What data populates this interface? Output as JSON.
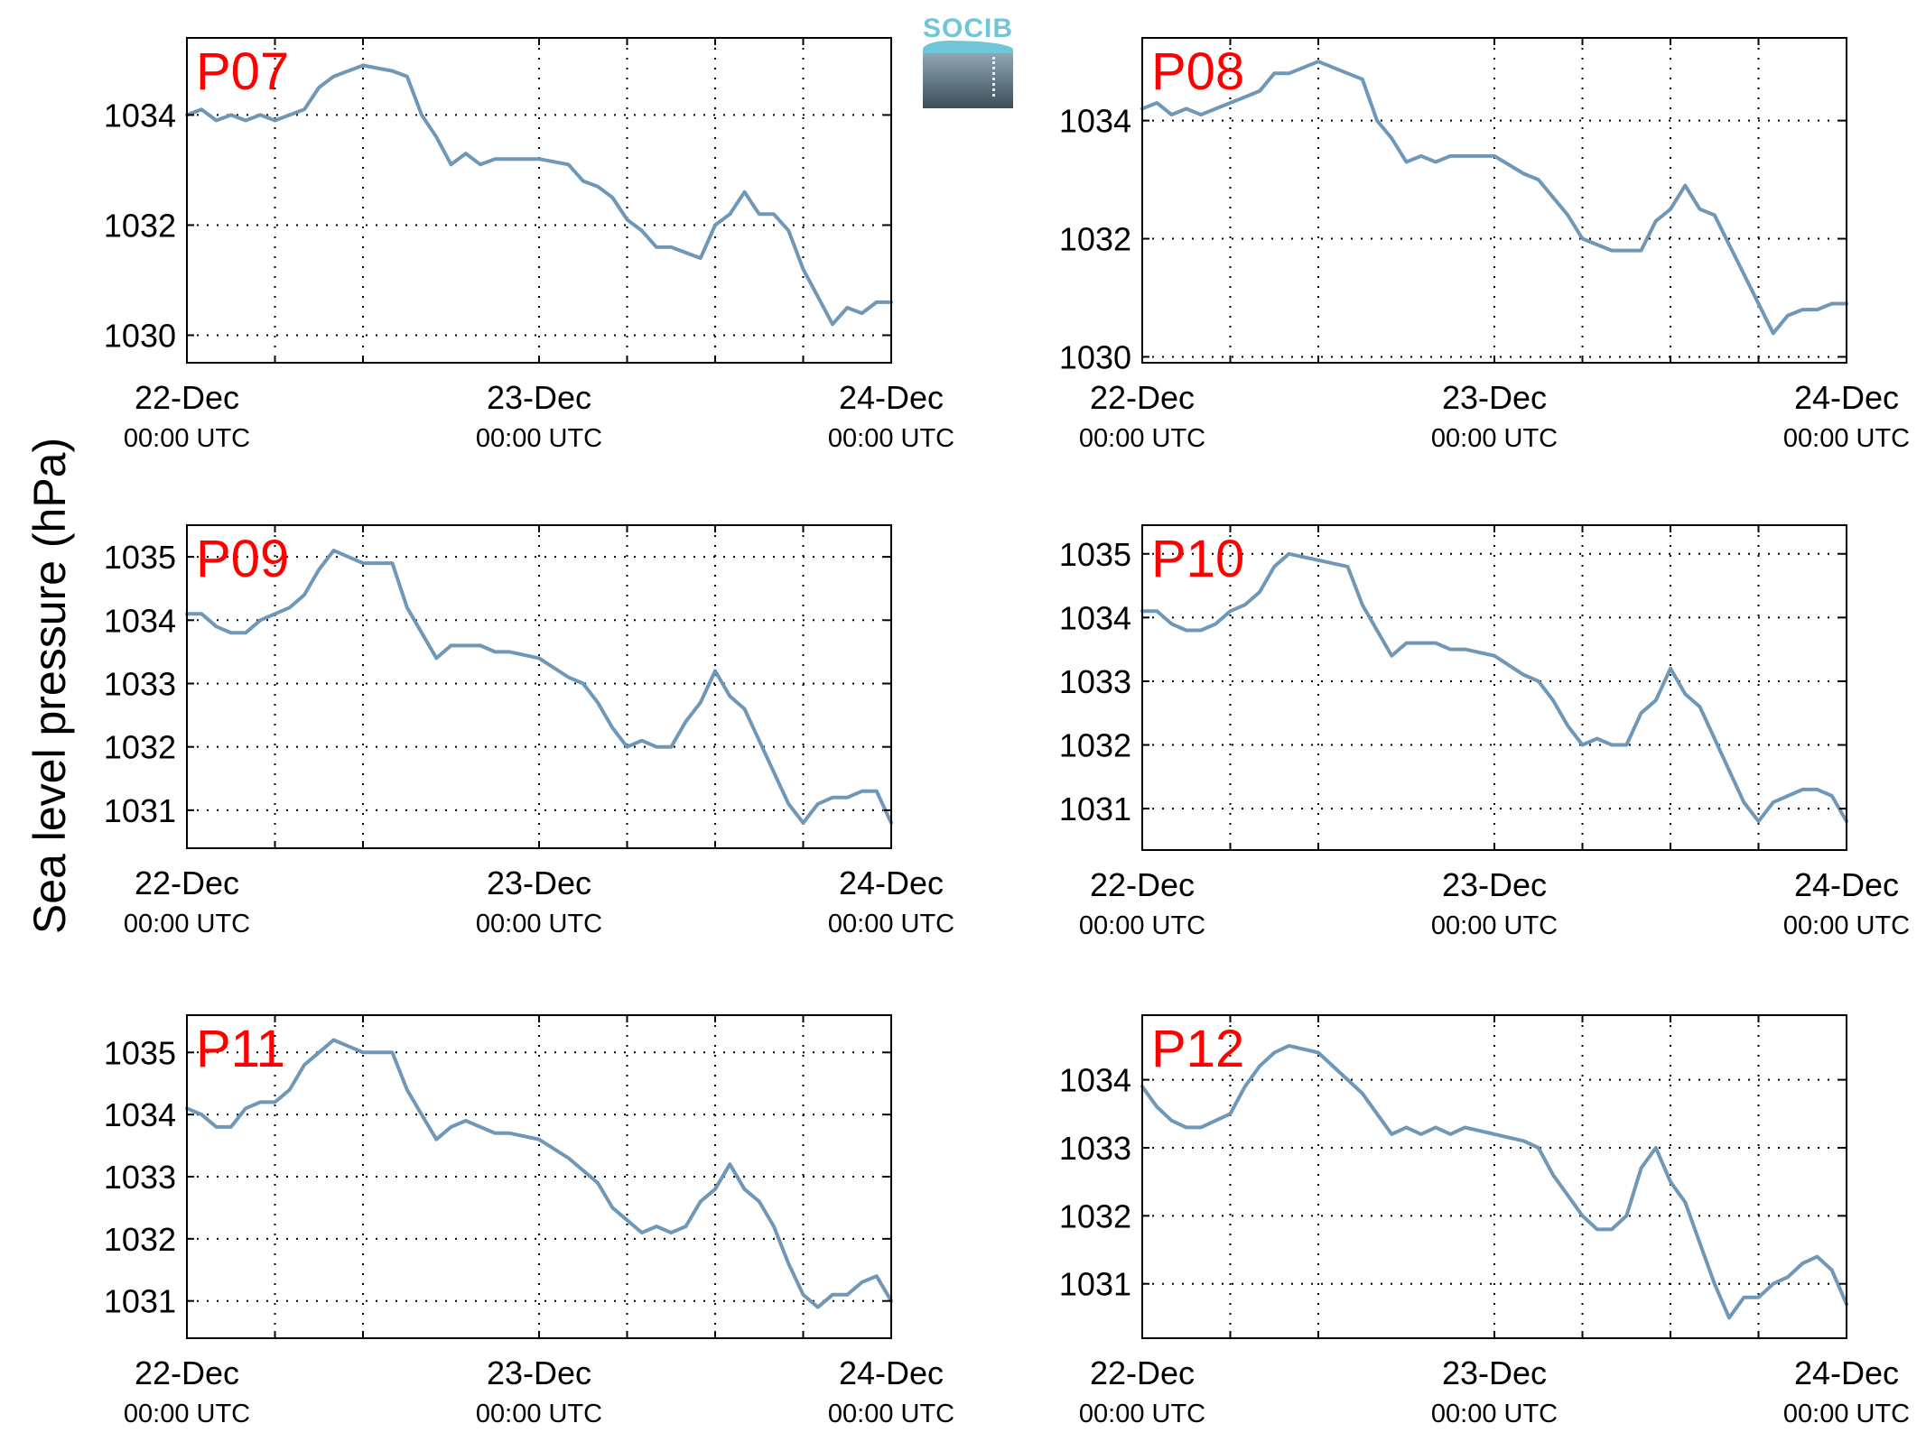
{
  "figure": {
    "ylabel": "Sea level pressure (hPa)",
    "logo_text": "SOCIB",
    "colors": {
      "line": "#6f97b8",
      "panel_label": "#ff0000",
      "axes": "#000000",
      "grid": "#000000"
    }
  },
  "chart_data": [
    {
      "type": "line",
      "panel_label": "P07",
      "x_tick_labels": [
        [
          "22-Dec",
          "00:00 UTC"
        ],
        [
          "23-Dec",
          "00:00 UTC"
        ],
        [
          "24-Dec",
          "00:00 UTC"
        ]
      ],
      "xlim": [
        "22-Dec 00:00",
        "24-Dec 00:00"
      ],
      "x_unit": "hours",
      "ylim": [
        1029.5,
        1035.4
      ],
      "yticks": [
        1030,
        1032,
        1034
      ],
      "grid": true,
      "x": [
        0,
        1,
        2,
        3,
        4,
        5,
        6,
        7,
        8,
        9,
        10,
        12,
        14,
        15,
        16,
        17,
        18,
        19,
        20,
        21,
        22,
        24,
        26,
        27,
        28,
        29,
        30,
        31,
        32,
        33,
        34,
        35,
        36,
        37,
        38,
        39,
        40,
        41,
        42,
        43,
        44,
        45,
        46,
        47,
        48
      ],
      "y": [
        1034.0,
        1034.1,
        1033.9,
        1034.0,
        1033.9,
        1034.0,
        1033.9,
        1034.0,
        1034.1,
        1034.5,
        1034.7,
        1034.9,
        1034.8,
        1034.7,
        1034.0,
        1033.6,
        1033.1,
        1033.3,
        1033.1,
        1033.2,
        1033.2,
        1033.2,
        1033.1,
        1032.8,
        1032.7,
        1032.5,
        1032.1,
        1031.9,
        1031.6,
        1031.6,
        1031.5,
        1031.4,
        1032.0,
        1032.2,
        1032.6,
        1032.2,
        1032.2,
        1031.9,
        1031.2,
        1030.7,
        1030.2,
        1030.5,
        1030.4,
        1030.6,
        1030.6
      ]
    },
    {
      "type": "line",
      "panel_label": "P08",
      "x_tick_labels": [
        [
          "22-Dec",
          "00:00 UTC"
        ],
        [
          "23-Dec",
          "00:00 UTC"
        ],
        [
          "24-Dec",
          "00:00 UTC"
        ]
      ],
      "xlim": [
        "22-Dec 00:00",
        "24-Dec 00:00"
      ],
      "x_unit": "hours",
      "ylim": [
        1029.9,
        1035.4
      ],
      "yticks": [
        1030,
        1032,
        1034
      ],
      "grid": true,
      "x": [
        0,
        1,
        2,
        3,
        4,
        5,
        6,
        7,
        8,
        9,
        10,
        12,
        14,
        15,
        16,
        17,
        18,
        19,
        20,
        21,
        22,
        24,
        26,
        27,
        28,
        29,
        30,
        31,
        32,
        33,
        34,
        35,
        36,
        37,
        38,
        39,
        40,
        41,
        42,
        43,
        44,
        45,
        46,
        47,
        48
      ],
      "y": [
        1034.2,
        1034.3,
        1034.1,
        1034.2,
        1034.1,
        1034.2,
        1034.3,
        1034.4,
        1034.5,
        1034.8,
        1034.8,
        1035.0,
        1034.8,
        1034.7,
        1034.0,
        1033.7,
        1033.3,
        1033.4,
        1033.3,
        1033.4,
        1033.4,
        1033.4,
        1033.1,
        1033.0,
        1032.7,
        1032.4,
        1032.0,
        1031.9,
        1031.8,
        1031.8,
        1031.8,
        1032.3,
        1032.5,
        1032.9,
        1032.5,
        1032.4,
        1031.9,
        1031.4,
        1030.9,
        1030.4,
        1030.7,
        1030.8,
        1030.8,
        1030.9,
        1030.9
      ]
    },
    {
      "type": "line",
      "panel_label": "P09",
      "x_tick_labels": [
        [
          "22-Dec",
          "00:00 UTC"
        ],
        [
          "23-Dec",
          "00:00 UTC"
        ],
        [
          "24-Dec",
          "00:00 UTC"
        ]
      ],
      "xlim": [
        "22-Dec 00:00",
        "24-Dec 00:00"
      ],
      "x_unit": "hours",
      "ylim": [
        1030.4,
        1035.5
      ],
      "yticks": [
        1031,
        1032,
        1033,
        1034,
        1035
      ],
      "grid": true,
      "x": [
        0,
        1,
        2,
        3,
        4,
        5,
        6,
        7,
        8,
        9,
        10,
        12,
        14,
        15,
        16,
        17,
        18,
        19,
        20,
        21,
        22,
        24,
        26,
        27,
        28,
        29,
        30,
        31,
        32,
        33,
        34,
        35,
        36,
        37,
        38,
        39,
        40,
        41,
        42,
        43,
        44,
        45,
        46,
        47,
        48
      ],
      "y": [
        1034.1,
        1034.1,
        1033.9,
        1033.8,
        1033.8,
        1034.0,
        1034.1,
        1034.2,
        1034.4,
        1034.8,
        1035.1,
        1034.9,
        1034.9,
        1034.2,
        1033.8,
        1033.4,
        1033.6,
        1033.6,
        1033.6,
        1033.5,
        1033.5,
        1033.4,
        1033.1,
        1033.0,
        1032.7,
        1032.3,
        1032.0,
        1032.1,
        1032.0,
        1032.0,
        1032.4,
        1032.7,
        1033.2,
        1032.8,
        1032.6,
        1032.1,
        1031.6,
        1031.1,
        1030.8,
        1031.1,
        1031.2,
        1031.2,
        1031.3,
        1031.3,
        1030.8
      ]
    },
    {
      "type": "line",
      "panel_label": "P10",
      "x_tick_labels": [
        [
          "22-Dec",
          "00:00 UTC"
        ],
        [
          "23-Dec",
          "00:00 UTC"
        ],
        [
          "24-Dec",
          "00:00 UTC"
        ]
      ],
      "xlim": [
        "22-Dec 00:00",
        "24-Dec 00:00"
      ],
      "x_unit": "hours",
      "ylim": [
        1030.35,
        1035.45
      ],
      "yticks": [
        1031,
        1032,
        1033,
        1034,
        1035
      ],
      "grid": true,
      "x": [
        0,
        1,
        2,
        3,
        4,
        5,
        6,
        7,
        8,
        9,
        10,
        12,
        14,
        15,
        16,
        17,
        18,
        19,
        20,
        21,
        22,
        24,
        26,
        27,
        28,
        29,
        30,
        31,
        32,
        33,
        34,
        35,
        36,
        37,
        38,
        39,
        40,
        41,
        42,
        43,
        44,
        45,
        46,
        47,
        48
      ],
      "y": [
        1034.1,
        1034.1,
        1033.9,
        1033.8,
        1033.8,
        1033.9,
        1034.1,
        1034.2,
        1034.4,
        1034.8,
        1035.0,
        1034.9,
        1034.8,
        1034.2,
        1033.8,
        1033.4,
        1033.6,
        1033.6,
        1033.6,
        1033.5,
        1033.5,
        1033.4,
        1033.1,
        1033.0,
        1032.7,
        1032.3,
        1032.0,
        1032.1,
        1032.0,
        1032.0,
        1032.5,
        1032.7,
        1033.2,
        1032.8,
        1032.6,
        1032.1,
        1031.6,
        1031.1,
        1030.8,
        1031.1,
        1031.2,
        1031.3,
        1031.3,
        1031.2,
        1030.8
      ]
    },
    {
      "type": "line",
      "panel_label": "P11",
      "x_tick_labels": [
        [
          "22-Dec",
          "00:00 UTC"
        ],
        [
          "23-Dec",
          "00:00 UTC"
        ],
        [
          "24-Dec",
          "00:00 UTC"
        ]
      ],
      "xlim": [
        "22-Dec 00:00",
        "24-Dec 00:00"
      ],
      "x_unit": "hours",
      "ylim": [
        1030.4,
        1035.6
      ],
      "yticks": [
        1031,
        1032,
        1033,
        1034,
        1035
      ],
      "grid": true,
      "x": [
        0,
        1,
        2,
        3,
        4,
        5,
        6,
        7,
        8,
        9,
        10,
        12,
        14,
        15,
        16,
        17,
        18,
        19,
        20,
        21,
        22,
        24,
        26,
        27,
        28,
        29,
        30,
        31,
        32,
        33,
        34,
        35,
        36,
        37,
        38,
        39,
        40,
        41,
        42,
        43,
        44,
        45,
        46,
        47,
        48
      ],
      "y": [
        1034.1,
        1034.0,
        1033.8,
        1033.8,
        1034.1,
        1034.2,
        1034.2,
        1034.4,
        1034.8,
        1035.0,
        1035.2,
        1035.0,
        1035.0,
        1034.4,
        1034.0,
        1033.6,
        1033.8,
        1033.9,
        1033.8,
        1033.7,
        1033.7,
        1033.6,
        1033.3,
        1033.1,
        1032.9,
        1032.5,
        1032.3,
        1032.1,
        1032.2,
        1032.1,
        1032.2,
        1032.6,
        1032.8,
        1033.2,
        1032.8,
        1032.6,
        1032.2,
        1031.6,
        1031.1,
        1030.9,
        1031.1,
        1031.1,
        1031.3,
        1031.4,
        1031.0
      ]
    },
    {
      "type": "line",
      "panel_label": "P12",
      "x_tick_labels": [
        [
          "22-Dec",
          "00:00 UTC"
        ],
        [
          "23-Dec",
          "00:00 UTC"
        ],
        [
          "24-Dec",
          "00:00 UTC"
        ]
      ],
      "xlim": [
        "22-Dec 00:00",
        "24-Dec 00:00"
      ],
      "x_unit": "hours",
      "ylim": [
        1030.2,
        1034.95
      ],
      "yticks": [
        1031,
        1032,
        1033,
        1034
      ],
      "grid": true,
      "x": [
        0,
        1,
        2,
        3,
        4,
        5,
        6,
        7,
        8,
        9,
        10,
        12,
        14,
        15,
        16,
        17,
        18,
        19,
        20,
        21,
        22,
        24,
        26,
        27,
        28,
        29,
        30,
        31,
        32,
        33,
        34,
        35,
        36,
        37,
        38,
        39,
        40,
        41,
        42,
        43,
        44,
        45,
        46,
        47,
        48
      ],
      "y": [
        1033.9,
        1033.6,
        1033.4,
        1033.3,
        1033.3,
        1033.4,
        1033.5,
        1033.9,
        1034.2,
        1034.4,
        1034.5,
        1034.4,
        1034.0,
        1033.8,
        1033.5,
        1033.2,
        1033.3,
        1033.2,
        1033.3,
        1033.2,
        1033.3,
        1033.2,
        1033.1,
        1033.0,
        1032.6,
        1032.3,
        1032.0,
        1031.8,
        1031.8,
        1032.0,
        1032.7,
        1033.0,
        1032.5,
        1032.2,
        1031.6,
        1031.0,
        1030.5,
        1030.8,
        1030.8,
        1031.0,
        1031.1,
        1031.3,
        1031.4,
        1031.2,
        1030.7
      ]
    }
  ]
}
